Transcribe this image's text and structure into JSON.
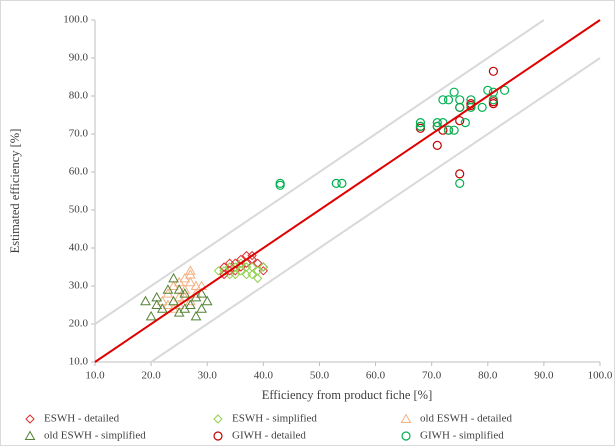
{
  "chart_data": {
    "type": "scatter",
    "x_label": "Efficiency from product fiche [%]",
    "y_label": "Estimated efficiency [%]",
    "xlim": [
      10,
      100
    ],
    "ylim": [
      10,
      100
    ],
    "xticks": [
      {
        "value": 10,
        "label": "10.0"
      },
      {
        "value": 20,
        "label": "20.0"
      },
      {
        "value": 30,
        "label": "30.0"
      },
      {
        "value": 40,
        "label": "40.0"
      },
      {
        "value": 50,
        "label": "50.0"
      },
      {
        "value": 60,
        "label": "60.0"
      },
      {
        "value": 70,
        "label": "70.0"
      },
      {
        "value": 80,
        "label": "80.0"
      },
      {
        "value": 90,
        "label": "90.0"
      },
      {
        "value": 100,
        "label": "100.0"
      }
    ],
    "yticks": [
      {
        "value": 10,
        "label": "10.0"
      },
      {
        "value": 20,
        "label": "20.0"
      },
      {
        "value": 30,
        "label": "30.0"
      },
      {
        "value": 40,
        "label": "40.0"
      },
      {
        "value": 50,
        "label": "50.0"
      },
      {
        "value": 60,
        "label": "60.0"
      },
      {
        "value": 70,
        "label": "70.0"
      },
      {
        "value": 80,
        "label": "80.0"
      },
      {
        "value": 90,
        "label": "90.0"
      },
      {
        "value": 100,
        "label": "100.0"
      }
    ],
    "reference_lines": [
      {
        "x": [
          10,
          100
        ],
        "y": [
          10,
          100
        ],
        "color": "#e00000"
      },
      {
        "x": [
          10,
          90
        ],
        "y": [
          20,
          100
        ],
        "color": "#d9d9d9"
      },
      {
        "x": [
          20,
          100
        ],
        "y": [
          10,
          90
        ],
        "color": "#d9d9d9"
      }
    ],
    "series": [
      {
        "name": "ESWH - detailed",
        "marker": "diamond",
        "color": "#e03030",
        "x": [
          33,
          34,
          35,
          36,
          37,
          38,
          37,
          36,
          35,
          34,
          40,
          40,
          33,
          38,
          39
        ],
        "y": [
          35,
          34,
          36,
          37,
          38,
          37,
          36,
          35,
          34,
          36,
          35,
          34,
          33,
          38,
          36
        ]
      },
      {
        "name": "ESWH - simplified",
        "marker": "diamond",
        "color": "#92d050",
        "x": [
          33,
          34,
          35,
          36,
          37,
          38,
          39,
          40,
          36,
          35,
          37,
          32,
          34,
          38,
          39
        ],
        "y": [
          34,
          33,
          35,
          34,
          35,
          33,
          32,
          35,
          36,
          33,
          33,
          34,
          35,
          35,
          34
        ]
      },
      {
        "name": "old ESWH - detailed",
        "marker": "triangle",
        "color": "#f4b183",
        "x": [
          22,
          23,
          24,
          25,
          26,
          27,
          27,
          28,
          26,
          25,
          24,
          27,
          28,
          29,
          23,
          26,
          25,
          27
        ],
        "y": [
          26,
          28,
          30,
          27,
          32,
          33,
          34,
          30,
          29,
          25,
          24,
          31,
          28,
          30,
          25,
          27,
          31,
          26
        ]
      },
      {
        "name": "old ESWH - simplified",
        "marker": "triangle",
        "color": "#548235",
        "x": [
          19,
          20,
          21,
          22,
          23,
          24,
          25,
          26,
          27,
          28,
          29,
          30,
          28,
          21,
          24,
          26,
          29,
          25
        ],
        "y": [
          26,
          22,
          27,
          24,
          29,
          26,
          23,
          28,
          25,
          27,
          24,
          26,
          22,
          25,
          32,
          24,
          28,
          29
        ]
      },
      {
        "name": "GIWH - detailed",
        "marker": "circle",
        "color": "#c00000",
        "x": [
          68,
          68,
          71,
          71,
          73,
          75,
          75,
          77,
          77,
          81,
          81,
          81,
          75,
          72
        ],
        "y": [
          72,
          71.5,
          67,
          72,
          71,
          59.5,
          73.5,
          77.5,
          78,
          86.5,
          78,
          78.5,
          77,
          71
        ]
      },
      {
        "name": "GIWH - simplified",
        "marker": "circle",
        "color": "#00b050",
        "x": [
          43,
          43,
          53,
          54,
          68,
          68,
          71,
          71,
          72,
          72,
          73,
          73,
          74,
          74,
          75,
          75,
          75,
          76,
          77,
          77,
          79,
          80,
          81,
          81,
          83
        ],
        "y": [
          56.5,
          57,
          57,
          57,
          72,
          73,
          72,
          73,
          79,
          73,
          79,
          71,
          81,
          71,
          79,
          77,
          57,
          73,
          79,
          77,
          77,
          81.5,
          81,
          79,
          81.5
        ]
      }
    ]
  }
}
